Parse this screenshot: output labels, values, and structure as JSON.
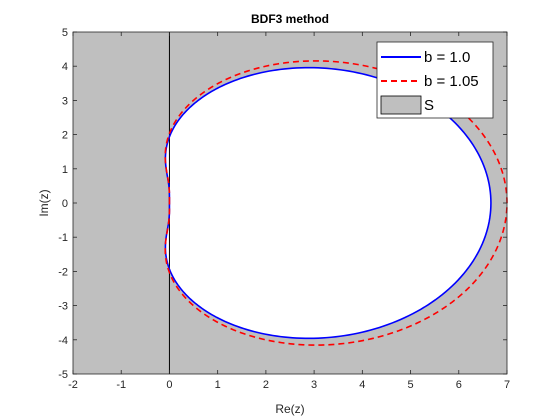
{
  "chart_data": {
    "type": "line",
    "title": "BDF3 method",
    "xlabel": "Re(z)",
    "ylabel": "Im(z)",
    "xlim": [
      -2,
      7
    ],
    "ylim": [
      -5,
      5
    ],
    "xticks": [
      "-2",
      "-1",
      "0",
      "1",
      "2",
      "3",
      "4",
      "5",
      "6",
      "7"
    ],
    "yticks": [
      "-5",
      "-4",
      "-3",
      "-2",
      "-1",
      "0",
      "1",
      "2",
      "3",
      "4",
      "5"
    ],
    "grid": false,
    "legend_position": "top-right",
    "stability_region": {
      "name": "S",
      "fill_color": "#bfbfbf"
    },
    "series": [
      {
        "name": "b = 1.0",
        "color": "#0000ff",
        "style": "solid",
        "scale": 1.0,
        "x": [
          0.0,
          0.08,
          0.39,
          0.98,
          1.83,
          2.84,
          3.9,
          4.86,
          5.63,
          6.17,
          6.48,
          6.58
        ],
        "y": [
          0.0,
          1.05,
          2.0,
          2.76,
          3.3,
          3.55,
          3.48,
          3.06,
          2.37,
          1.53,
          0.69,
          0.0
        ]
      },
      {
        "name": "b = 1.05",
        "color": "#ff0000",
        "style": "dashed",
        "scale": 1.05,
        "x": [
          0.11,
          0.15,
          0.43,
          0.99,
          1.8,
          2.76,
          3.77,
          4.69,
          5.42,
          5.94,
          6.23,
          6.33
        ],
        "y": [
          0.0,
          0.89,
          1.79,
          2.52,
          3.04,
          3.27,
          3.2,
          2.8,
          2.15,
          1.35,
          0.55,
          0.0
        ]
      }
    ]
  }
}
